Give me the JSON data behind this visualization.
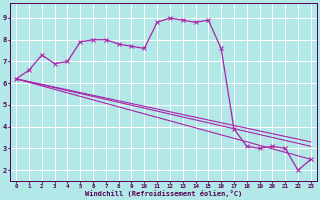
{
  "bg_color": "#b2e8e8",
  "grid_color": "#ffffff",
  "line_color": "#aa22aa",
  "marker_color": "#aa22aa",
  "xlabel": "Windchill (Refroidissement éolien,°C)",
  "xlabel_color": "#550055",
  "tick_color": "#550055",
  "xlim": [
    -0.5,
    23.5
  ],
  "ylim": [
    1.5,
    9.7
  ],
  "yticks": [
    2,
    3,
    4,
    5,
    6,
    7,
    8,
    9
  ],
  "xticks": [
    0,
    1,
    2,
    3,
    4,
    5,
    6,
    7,
    8,
    9,
    10,
    11,
    12,
    13,
    14,
    15,
    16,
    17,
    18,
    19,
    20,
    21,
    22,
    23
  ],
  "series1_x": [
    0,
    1,
    2,
    3,
    4,
    5,
    6,
    7,
    8,
    9,
    10,
    11,
    12,
    13,
    14,
    15,
    16,
    17,
    18,
    19,
    20,
    21,
    22,
    23
  ],
  "series1_y": [
    6.2,
    6.6,
    7.3,
    6.9,
    7.0,
    7.9,
    8.0,
    8.0,
    7.8,
    7.7,
    7.6,
    8.8,
    9.0,
    8.9,
    8.8,
    8.9,
    7.6,
    3.9,
    3.1,
    3.0,
    3.1,
    3.0,
    2.0,
    2.5
  ],
  "series2_x": [
    0,
    23
  ],
  "series2_y": [
    6.2,
    3.1
  ],
  "series3_x": [
    0,
    23
  ],
  "series3_y": [
    6.2,
    2.5
  ],
  "series4_x": [
    0,
    23
  ],
  "series4_y": [
    6.2,
    3.3
  ]
}
